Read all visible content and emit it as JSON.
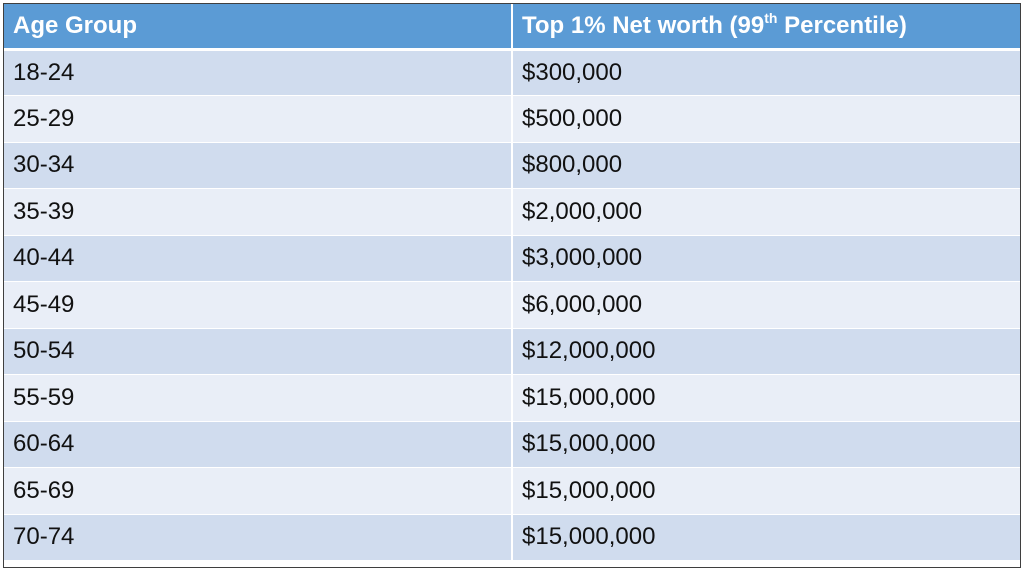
{
  "table": {
    "headers": {
      "age_group": "Age Group",
      "net_worth_main": "Top 1% Net worth (99",
      "net_worth_sup": "th",
      "net_worth_end": " Percentile)"
    },
    "rows": [
      {
        "age": "18-24",
        "value": "$300,000"
      },
      {
        "age": "25-29",
        "value": "$500,000"
      },
      {
        "age": "30-34",
        "value": "$800,000"
      },
      {
        "age": "35-39",
        "value": "$2,000,000"
      },
      {
        "age": "40-44",
        "value": "$3,000,000"
      },
      {
        "age": "45-49",
        "value": "$6,000,000"
      },
      {
        "age": "50-54",
        "value": "$12,000,000"
      },
      {
        "age": "55-59",
        "value": "$15,000,000"
      },
      {
        "age": "60-64",
        "value": "$15,000,000"
      },
      {
        "age": "65-69",
        "value": "$15,000,000"
      },
      {
        "age": "70-74",
        "value": "$15,000,000"
      }
    ]
  },
  "colors": {
    "header_bg": "#5b9bd5",
    "row_odd": "#d0dcee",
    "row_even": "#e9eef7"
  }
}
